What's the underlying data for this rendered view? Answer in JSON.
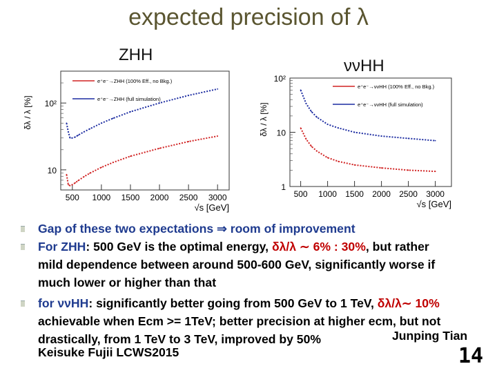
{
  "slide": {
    "title": "expected precision of λ",
    "left_label": "ZHH",
    "right_label": "ννHH",
    "page_number": "14",
    "author": "Junping Tian",
    "credit": "Keisuke Fujii LCWS2015"
  },
  "bullets": [
    {
      "parts": [
        {
          "text": "Gap of these two expectations ",
          "style": "blue"
        },
        {
          "text": "⇒",
          "style": "blue"
        },
        {
          "text": " room of improvement",
          "style": "blue"
        }
      ]
    },
    {
      "parts": [
        {
          "text": "For ZHH",
          "style": "blue"
        },
        {
          "text": ": 500 GeV is the optimal energy, ",
          "style": "plain"
        },
        {
          "text": "δλ/λ ∼ 6% : 30%",
          "style": "red"
        },
        {
          "text": ", but rather",
          "style": "plain"
        }
      ],
      "continuation": [
        "mild dependence between around 500-600 GeV, significantly worse if",
        "much lower or higher than that"
      ]
    },
    {
      "parts": [
        {
          "text": "for ννHH",
          "style": "blue"
        },
        {
          "text": ": significantly better going from 500 GeV to 1 TeV, ",
          "style": "plain"
        },
        {
          "text": "δλ/λ∼ 10%",
          "style": "red"
        }
      ],
      "continuation": [
        "achievable when Ecm >= 1TeV; better precision at higher ecm, but not",
        "drastically, from 1 TeV to 3 TeV, improved by 50%"
      ]
    }
  ],
  "colors": {
    "title": "#5a5530",
    "bullet_keyword": "#1f3b8f",
    "highlight": "#c00000",
    "curve_red": "#d02020",
    "curve_blue": "#1a2aa0"
  },
  "chart_data": [
    {
      "type": "line",
      "name": "ZHH",
      "xlabel": "√s [GeV]",
      "ylabel": "δλ / λ [%]",
      "xlim": [
        300,
        3200
      ],
      "ylim": [
        5,
        300
      ],
      "yscale": "log",
      "xticks": [
        500,
        1000,
        1500,
        2000,
        2500,
        3000
      ],
      "yticks": [
        {
          "value": 10,
          "label": "10"
        },
        {
          "value": 100,
          "label": "10²"
        }
      ],
      "legend": [
        {
          "label": "e⁺e⁻→ZHH (100% Eff., no Bkg.)",
          "color": "#d02020"
        },
        {
          "label": "e⁺e⁻→ZHH (full simulation)",
          "color": "#1a2aa0"
        }
      ],
      "series": [
        {
          "name": "e⁺e⁻→ZHH (100% Eff., no Bkg.)",
          "style": "dotted-red",
          "x": [
            400,
            430,
            460,
            500,
            550,
            600,
            700,
            800,
            1000,
            1200,
            1500,
            2000,
            2500,
            3000
          ],
          "y": [
            8.5,
            6.0,
            5.8,
            6.0,
            6.4,
            6.9,
            7.9,
            8.9,
            10.9,
            12.9,
            16.0,
            21.0,
            26.5,
            32.0
          ]
        },
        {
          "name": "e⁺e⁻→ZHH (full simulation)",
          "style": "dotted-blue",
          "x": [
            400,
            430,
            460,
            500,
            550,
            600,
            700,
            800,
            1000,
            1200,
            1500,
            2000,
            2500,
            3000
          ],
          "y": [
            50,
            37,
            30,
            30,
            31,
            33,
            37,
            41,
            50,
            59,
            74,
            100,
            130,
            162
          ]
        }
      ]
    },
    {
      "type": "line",
      "name": "ννHH",
      "xlabel": "√s [GeV]",
      "ylabel": "δλ / λ [%]",
      "xlim": [
        300,
        3300
      ],
      "ylim": [
        1,
        100
      ],
      "yscale": "log",
      "xticks": [
        500,
        1000,
        1500,
        2000,
        2500,
        3000
      ],
      "yticks": [
        {
          "value": 1,
          "label": "1"
        },
        {
          "value": 10,
          "label": "10"
        },
        {
          "value": 100,
          "label": "10²"
        }
      ],
      "legend": [
        {
          "label": "e⁺e⁻→ννHH (100% Eff., no Bkg.)",
          "color": "#d02020"
        },
        {
          "label": "e⁺e⁻→ννHH (full simulation)",
          "color": "#1a2aa0"
        }
      ],
      "series": [
        {
          "name": "e⁺e⁻→ννHH (100% Eff., no Bkg.)",
          "style": "dotted-red",
          "x": [
            500,
            600,
            700,
            800,
            1000,
            1200,
            1500,
            2000,
            2500,
            3000
          ],
          "y": [
            12,
            7.5,
            5.5,
            4.5,
            3.4,
            2.9,
            2.5,
            2.2,
            2.0,
            1.9
          ]
        },
        {
          "name": "e⁺e⁻→ννHH (full simulation)",
          "style": "dotted-blue",
          "x": [
            500,
            600,
            700,
            800,
            1000,
            1200,
            1500,
            2000,
            2500,
            3000
          ],
          "y": [
            60,
            34,
            24,
            19,
            14,
            12,
            10,
            8.5,
            7.7,
            7.0
          ]
        }
      ]
    }
  ]
}
